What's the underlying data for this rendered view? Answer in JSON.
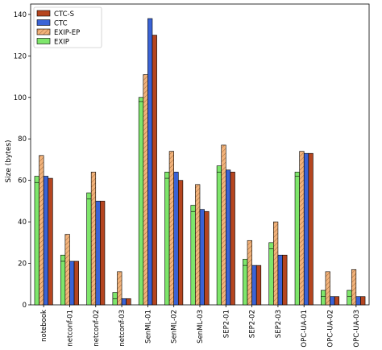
{
  "chart_data": {
    "type": "bar",
    "title": "",
    "xlabel": "",
    "ylabel": "Size (bytes)",
    "ylim": [
      0,
      145
    ],
    "yticks": [
      0,
      20,
      40,
      60,
      80,
      100,
      120,
      140
    ],
    "grid": false,
    "legend_position": "top-left",
    "categories": [
      "notebook",
      "netconf-01",
      "netconf-02",
      "netconf-03",
      "SenML-01",
      "SenML-02",
      "SenML-03",
      "SEP2-01",
      "SEP2-02",
      "SEP2-03",
      "OPC-UA-01",
      "OPC-UA-02",
      "OPC-UA-03"
    ],
    "series": [
      {
        "name": "EXIP",
        "color": "#7ee66b",
        "hatch": "none",
        "values": [
          62,
          24,
          54,
          6,
          100,
          64,
          48,
          67,
          22,
          30,
          64,
          7,
          7
        ],
        "inner_level": [
          59,
          21,
          51,
          3,
          98,
          61,
          45,
          64,
          19,
          27,
          62,
          4,
          4
        ]
      },
      {
        "name": "EXIP-EP",
        "color": "#f2b27a",
        "hatch": "diagonal",
        "values": [
          72,
          34,
          64,
          16,
          111,
          74,
          58,
          77,
          31,
          40,
          74,
          16,
          17
        ]
      },
      {
        "name": "CTC",
        "color": "#3a63d6",
        "hatch": "none",
        "values": [
          62,
          21,
          50,
          3,
          138,
          64,
          46,
          65,
          19,
          24,
          73,
          4,
          4
        ]
      },
      {
        "name": "CTC-S",
        "color": "#b5451f",
        "hatch": "none",
        "values": [
          61,
          21,
          50,
          3,
          130,
          60,
          45,
          64,
          19,
          24,
          73,
          4,
          4
        ]
      }
    ],
    "legend_order": [
      "CTC-S",
      "CTC",
      "EXIP-EP",
      "EXIP"
    ]
  }
}
